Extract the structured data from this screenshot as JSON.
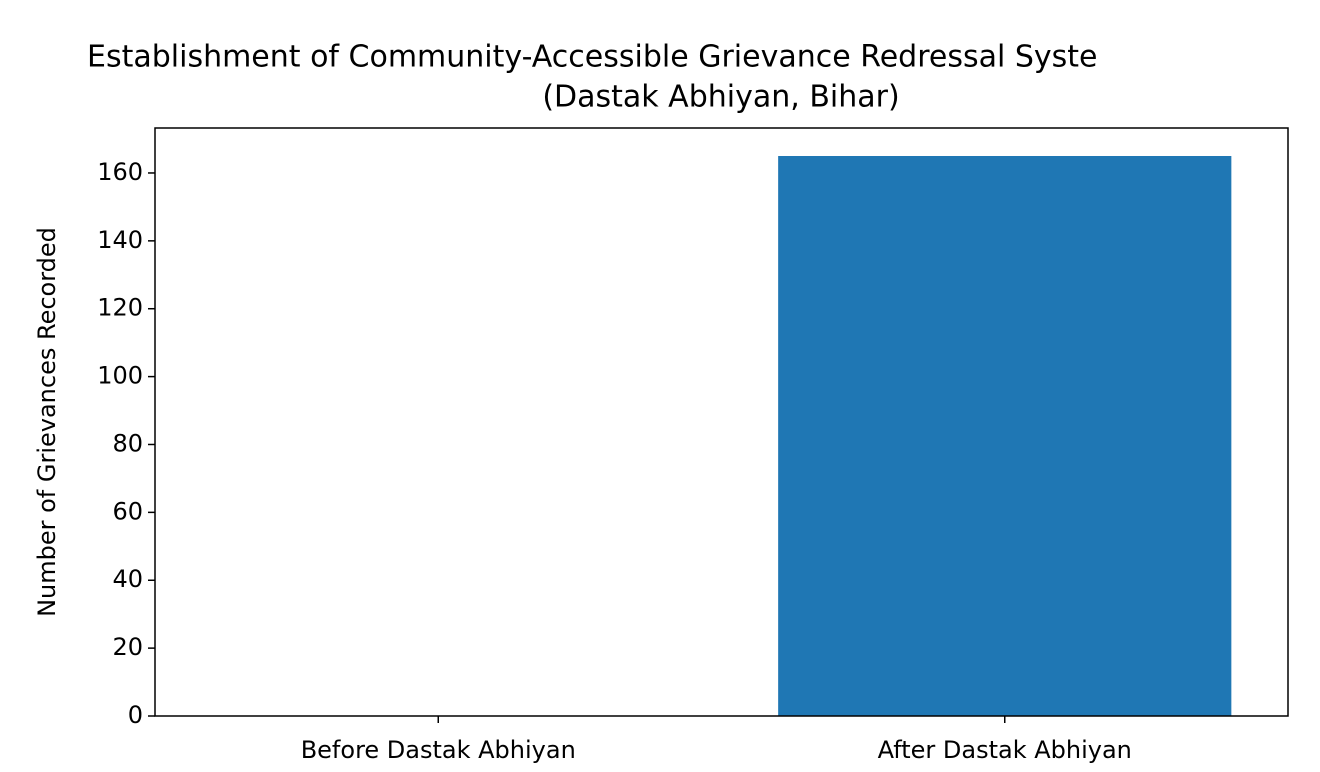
{
  "chart_data": {
    "type": "bar",
    "title": "Establishment of Community-Accessible Grievance Redressal Syste",
    "subtitle": "(Dastak Abhiyan, Bihar)",
    "y_label": "Number of Grievances Recorded",
    "categories": [
      "Before Dastak Abhiyan",
      "After Dastak Abhiyan"
    ],
    "values": [
      0,
      165
    ],
    "color": "#1f77b4",
    "ylim": [
      0,
      173.25
    ],
    "yticks": [
      0,
      20,
      40,
      60,
      80,
      100,
      120,
      140,
      160
    ],
    "grid": false
  }
}
